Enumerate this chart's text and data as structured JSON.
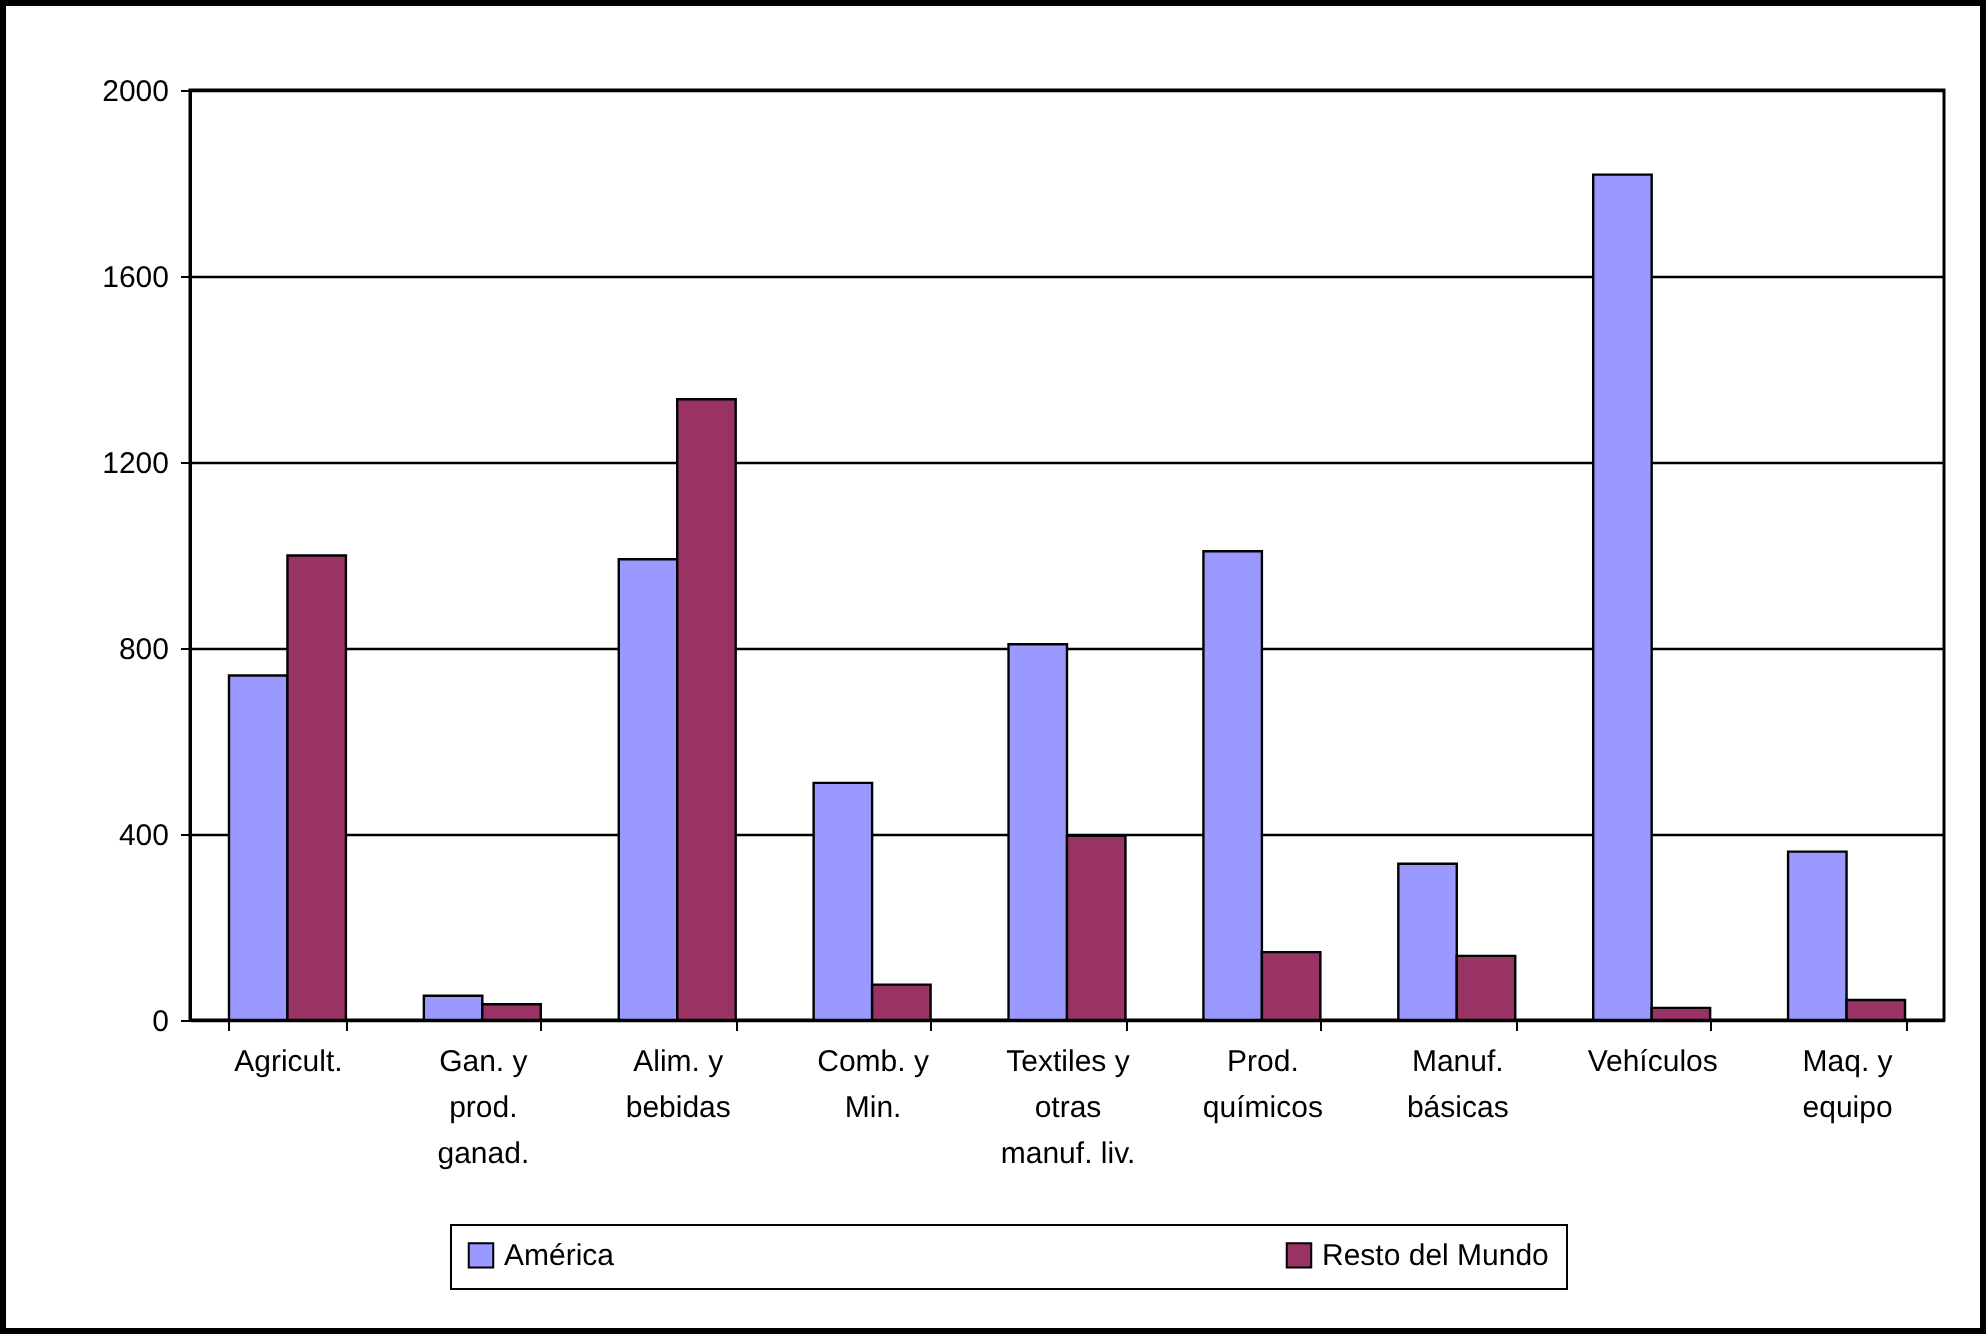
{
  "chart_data": {
    "type": "bar",
    "categories": [
      "Agricult.",
      "Gan. y prod. ganad.",
      "Alim. y bebidas",
      "Comb. y Min.",
      "Textiles y otras manuf. liv.",
      "Prod. químicos",
      "Manuf. básicas",
      "Vehículos",
      "Maq. y equipo"
    ],
    "series": [
      {
        "name": "América",
        "color": "#9999ff",
        "values": [
          741,
          52,
          991,
          510,
          808,
          1008,
          336,
          1818,
          362
        ]
      },
      {
        "name": "Resto del Mundo",
        "color": "#993366",
        "values": [
          999,
          34,
          1335,
          76,
          396,
          146,
          138,
          26,
          43
        ]
      }
    ],
    "ylim": [
      0,
      2000
    ],
    "yticks": [
      0,
      400,
      800,
      1200,
      1600,
      2000
    ],
    "grid": "y",
    "legend": "bottom"
  }
}
